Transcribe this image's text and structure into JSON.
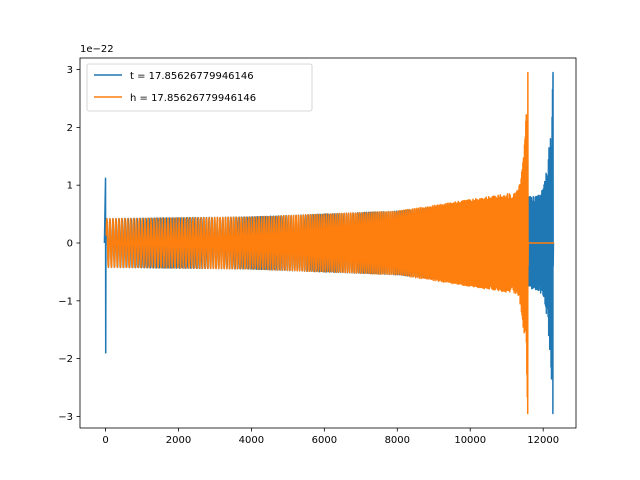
{
  "chart_data": {
    "type": "line",
    "title": "",
    "xlabel": "",
    "ylabel": "",
    "y_offset_label": "1e−22",
    "xlim": [
      -700,
      12900
    ],
    "ylim": [
      -3.2,
      3.2
    ],
    "xticks": [
      0,
      2000,
      4000,
      6000,
      8000,
      10000,
      12000
    ],
    "yticks": [
      -3,
      -2,
      -1,
      0,
      1,
      2,
      3
    ],
    "grid": false,
    "legend_position": "top-left",
    "series": [
      {
        "name": "t = 17.85626779946146",
        "color": "#1f77b4",
        "merger_x": 12270,
        "peak_amplitude": 2.95,
        "initial_spike": {
          "x": 0,
          "max": 1.12,
          "min": -1.9
        },
        "inspiral_envelope": [
          {
            "x": 0,
            "y": 0.42
          },
          {
            "x": 4000,
            "y": 0.45
          },
          {
            "x": 8000,
            "y": 0.55
          },
          {
            "x": 11600,
            "y": 0.8
          },
          {
            "x": 12270,
            "y": 2.95
          }
        ]
      },
      {
        "name": "h = 17.85626779946146",
        "color": "#ff7f0e",
        "merger_x": 11580,
        "peak_amplitude": 2.95,
        "ringdown_end_x": 12300,
        "inspiral_envelope": [
          {
            "x": 0,
            "y": 0.42
          },
          {
            "x": 4000,
            "y": 0.45
          },
          {
            "x": 8000,
            "y": 0.55
          },
          {
            "x": 11000,
            "y": 0.85
          },
          {
            "x": 11580,
            "y": 2.95
          }
        ]
      }
    ]
  }
}
